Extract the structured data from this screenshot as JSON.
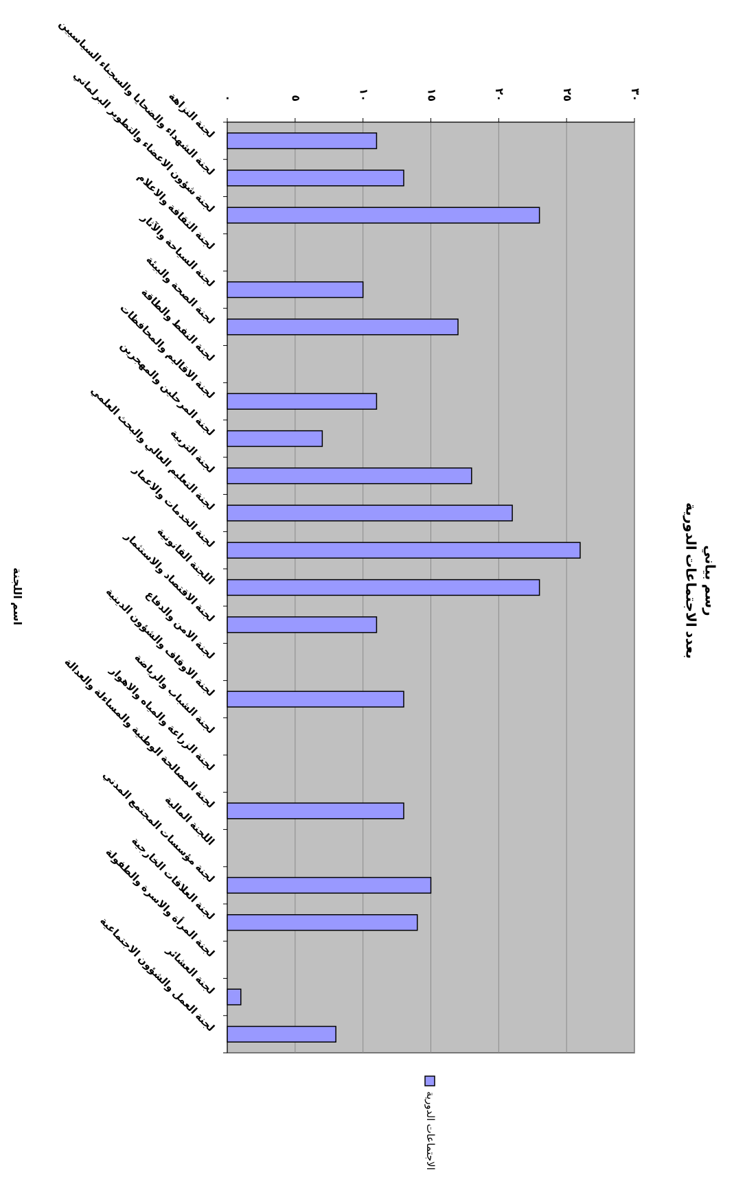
{
  "chart_data": {
    "type": "bar",
    "title": "رسم بياني",
    "subtitle": "بعدد الاجتماعات الدورية",
    "x_label": "اسم اللجنة",
    "categories": [
      "لجنة النزاهة",
      "لجنة الشهداء والضحايا والسجناء السياسيين",
      "لجنة شؤون الاعضاء والتطوير البرلماني",
      "لجنة الثقافة والاعلام",
      "لجنة السياحة والآثار",
      "لجنة الصحة والبيئة",
      "لجنة النفط والطاقة",
      "لجنة الاقاليم والمحافظات",
      "لجنة المرحلين والمهجرين",
      "لجنة التربية",
      "لجنة التعليم العالي والبحث العلمي",
      "لجنة الخدمات والاعمار",
      "اللجنة القانونية",
      "لجنة الاقتصاد والاستثمار",
      "لجنة الامن والدفاع",
      "لجنة الاوقاف والشؤون الدينية",
      "لجنة الشباب والرياضة",
      "لجنة الزراعة والمياه والاهوار",
      "لجنة المصالحة الوطنية والمساءلة والعدالة",
      "اللجنة المالية",
      "لجنة مؤسسات المجتمع المدني",
      "لجنة العلاقات الخارجية",
      "لجنة المرأة والاسرة والطفولة",
      "لجنة العشائر",
      "لجنة العمل والشؤون الاجتماعية"
    ],
    "series": [
      {
        "name": "الاجتماعات الدورية",
        "color": "#9999ff",
        "values": [
          11,
          13,
          23,
          0,
          10,
          17,
          0,
          11,
          7,
          18,
          21,
          26,
          23,
          11,
          0,
          13,
          0,
          0,
          13,
          0,
          15,
          14,
          0,
          1,
          8
        ]
      }
    ],
    "ylim": [
      0,
      30
    ],
    "yticks": [
      {
        "value": 0,
        "label": "٠"
      },
      {
        "value": 5,
        "label": "٥"
      },
      {
        "value": 10,
        "label": "١٠"
      },
      {
        "value": 15,
        "label": "١٥"
      },
      {
        "value": 20,
        "label": "٢٠"
      },
      {
        "value": 25,
        "label": "٢٥"
      },
      {
        "value": 30,
        "label": "٣٠"
      }
    ],
    "grid": true,
    "plot_background": "#c0c0c0",
    "legend": "right"
  }
}
